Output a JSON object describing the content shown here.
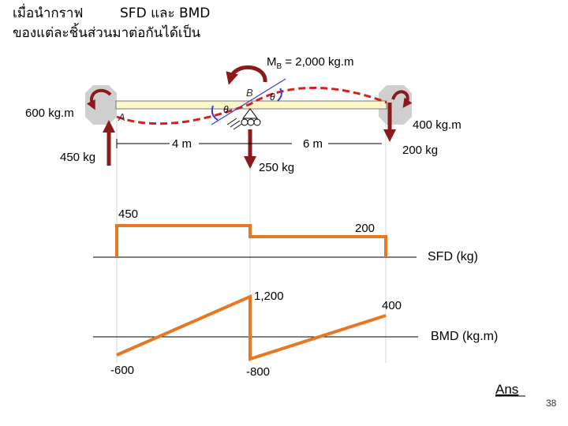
{
  "title": {
    "line1": "เมื่อนำกราฟ",
    "line1b": "SFD และ BMD",
    "line2": "ของแต่ละชิ้นส่วนมาต่อกันได้เป็น"
  },
  "beam": {
    "moment_b_label": "M",
    "moment_b_sub": "B",
    "moment_b_value": " = 2,000 kg.m",
    "moment_left": "600 kg.m",
    "moment_right": "400 kg.m",
    "force_left": "450 kg",
    "force_mid": "250 kg",
    "force_right": "200 kg",
    "span_left": "4 m",
    "span_right": "6 m",
    "point_a": "A",
    "point_b": "B",
    "theta": "θ"
  },
  "sfd": {
    "label": "SFD (kg)",
    "value_left": "450",
    "value_right": "200"
  },
  "bmd": {
    "label": "BMD (kg.m)",
    "value_left": "-600",
    "value_peak": "1,200",
    "value_drop": "-800",
    "value_right": "400"
  },
  "footer": {
    "ans": "Ans",
    "page": "38"
  },
  "colors": {
    "diagram": "#e87722",
    "arrow": "#8b1a1a",
    "beam": "#fbf6c8",
    "deflection": "#d62020",
    "gridline": "#cccccc"
  }
}
